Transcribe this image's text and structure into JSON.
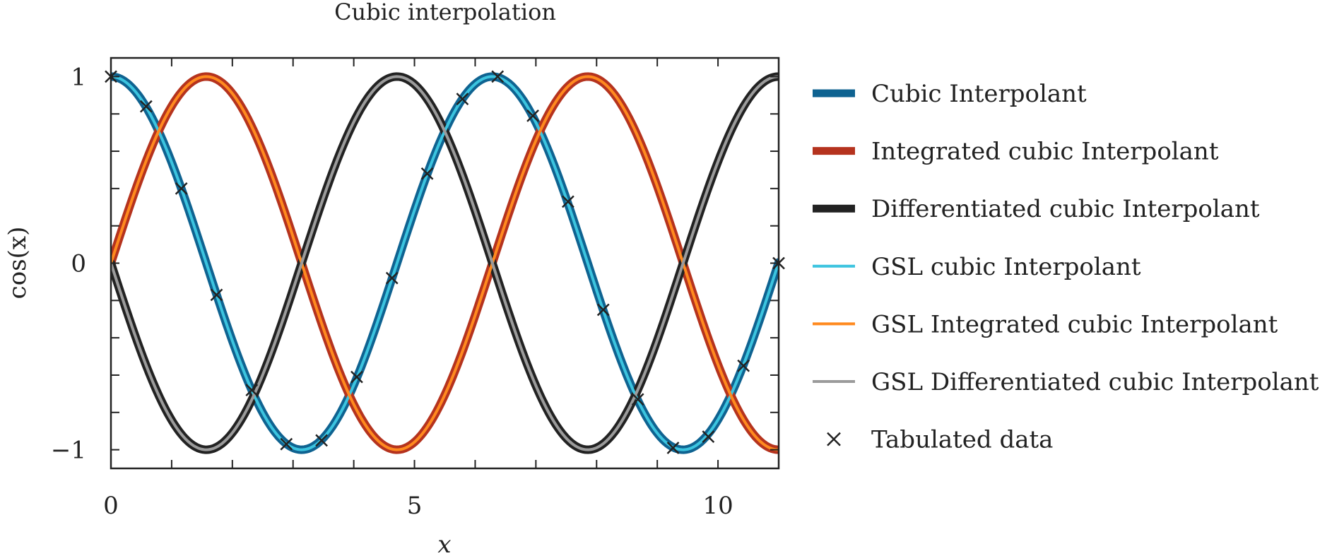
{
  "chart_data": {
    "type": "line",
    "title": "Cubic interpolation",
    "xlabel": "x",
    "ylabel": "cos(x)",
    "xlim": [
      0,
      11
    ],
    "ylim": [
      -1.1,
      1.1
    ],
    "xticks": [
      0,
      5,
      10
    ],
    "xtick_labels": [
      "0",
      "5",
      "10"
    ],
    "yticks": [
      -1,
      0,
      1
    ],
    "ytick_labels": [
      "−1",
      "0",
      "1"
    ],
    "grid": false,
    "legend_position": "outside-right",
    "series": [
      {
        "name": "Cubic Interpolant",
        "function": "cos(x)",
        "color": "#0f6391",
        "style": "thick"
      },
      {
        "name": "Integrated cubic Interpolant",
        "function": "sin(x)",
        "color": "#b5331e",
        "style": "thick"
      },
      {
        "name": "Differentiated cubic Interpolant",
        "function": "-sin(x)",
        "color": "#222222",
        "style": "thick"
      },
      {
        "name": "GSL cubic Interpolant",
        "function": "cos(x)",
        "color": "#3cc4df",
        "style": "thin"
      },
      {
        "name": "GSL Integrated cubic Interpolant",
        "function": "sin(x)",
        "color": "#ff8a1f",
        "style": "thin"
      },
      {
        "name": "GSL Differentiated cubic Interpolant",
        "function": "-sin(x)",
        "color": "#9b9b9b",
        "style": "thin"
      },
      {
        "name": "Tabulated data",
        "style": "markers",
        "color": "#222222",
        "marker": "x",
        "x": [
          0.0,
          0.58,
          1.16,
          1.74,
          2.32,
          2.89,
          3.47,
          4.05,
          4.63,
          5.21,
          5.79,
          6.37,
          6.95,
          7.53,
          8.11,
          8.68,
          9.26,
          9.84,
          10.42,
          11.0
        ],
        "y": [
          1.0,
          0.84,
          0.4,
          -0.17,
          -0.68,
          -0.97,
          -0.95,
          -0.61,
          -0.08,
          0.48,
          0.88,
          1.0,
          0.79,
          0.33,
          -0.25,
          -0.73,
          -0.99,
          -0.93,
          -0.55,
          0.0
        ]
      }
    ]
  }
}
